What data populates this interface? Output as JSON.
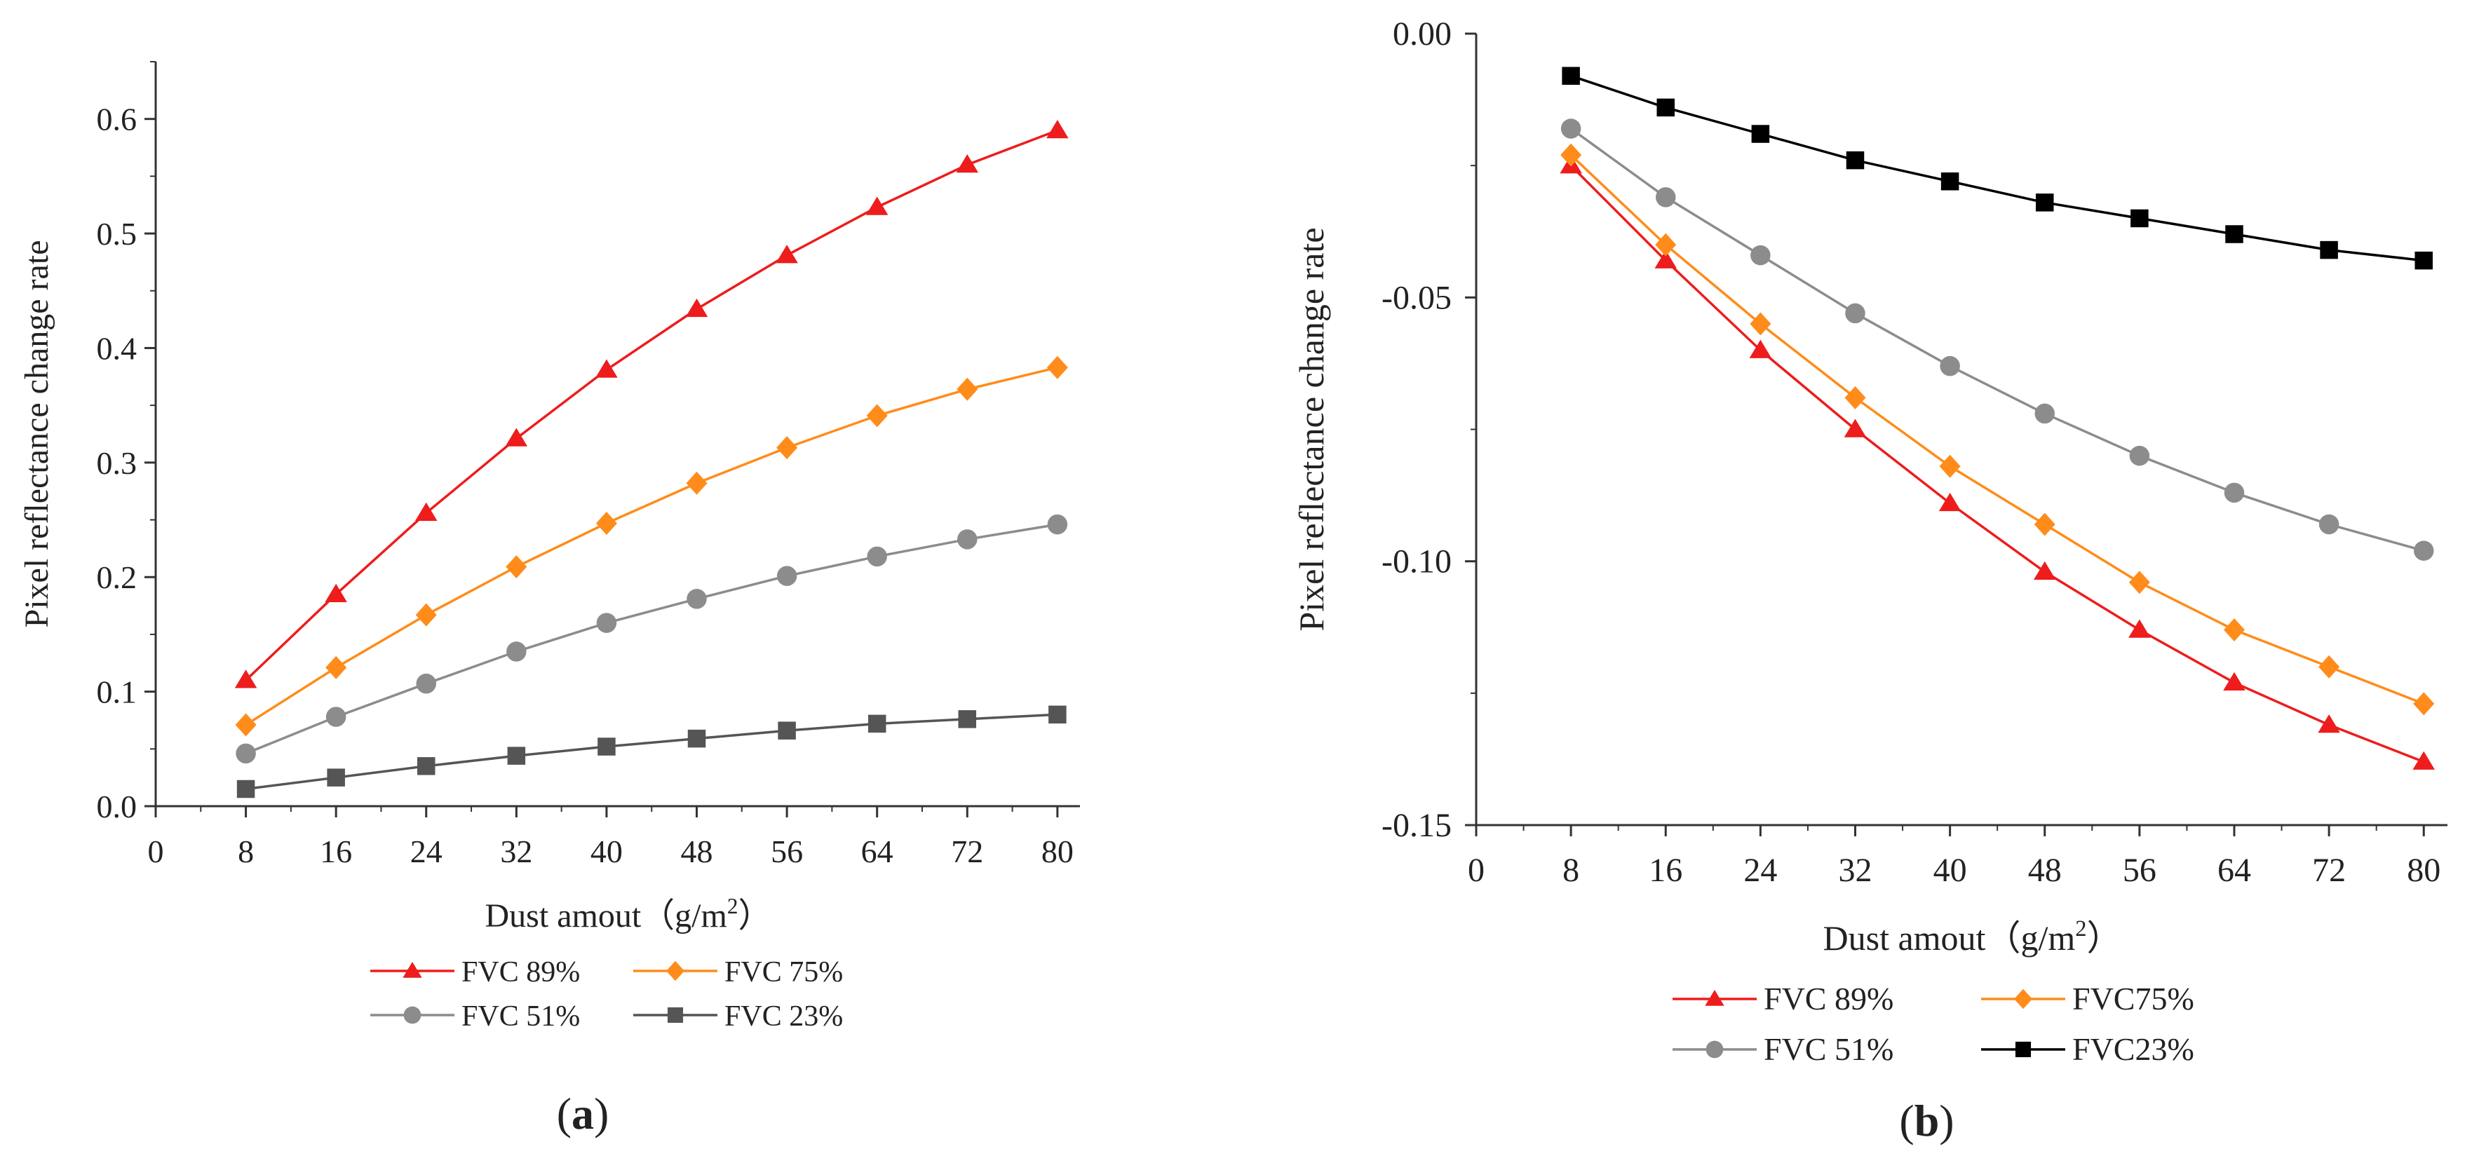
{
  "chart_data": [
    {
      "type": "line",
      "panel_label": "(a)",
      "title": "",
      "xlabel": "Dust amout",
      "xlabel_unit": "（g/m²）",
      "ylabel": "Pixel reflectance change rate",
      "xlim": [
        0,
        82
      ],
      "ylim": [
        0,
        0.65
      ],
      "x_ticks": [
        0,
        8,
        16,
        24,
        32,
        40,
        48,
        56,
        64,
        72,
        80
      ],
      "y_ticks": [
        0.0,
        0.1,
        0.2,
        0.3,
        0.4,
        0.5,
        0.6
      ],
      "y_tick_labels": [
        "0.0",
        "0.1",
        "0.2",
        "0.3",
        "0.4",
        "0.5",
        "0.6"
      ],
      "x": [
        8,
        16,
        24,
        32,
        40,
        48,
        56,
        64,
        72,
        80
      ],
      "legend_layout": "two-column",
      "series": [
        {
          "name": "FVC 89%",
          "color": "#ee1c1c",
          "marker": "triangle",
          "values": [
            0.11,
            0.185,
            0.256,
            0.321,
            0.381,
            0.434,
            0.481,
            0.523,
            0.56,
            0.59
          ]
        },
        {
          "name": "FVC 75%",
          "color": "#ff8c1a",
          "marker": "diamond",
          "values": [
            0.071,
            0.121,
            0.167,
            0.209,
            0.247,
            0.282,
            0.313,
            0.341,
            0.364,
            0.383
          ]
        },
        {
          "name": "FVC 51%",
          "color": "#8c8c8c",
          "marker": "circle",
          "values": [
            0.046,
            0.078,
            0.107,
            0.135,
            0.16,
            0.181,
            0.201,
            0.218,
            0.233,
            0.246
          ]
        },
        {
          "name": "FVC 23%",
          "color": "#555555",
          "marker": "square",
          "values": [
            0.015,
            0.025,
            0.035,
            0.044,
            0.052,
            0.059,
            0.066,
            0.072,
            0.076,
            0.08
          ]
        }
      ]
    },
    {
      "type": "line",
      "panel_label": "(b)",
      "title": "",
      "xlabel": "Dust amout",
      "xlabel_unit": "（g/m²）",
      "ylabel": "Pixel reflectance change rate",
      "xlim": [
        0,
        82
      ],
      "ylim": [
        -0.15,
        0.0
      ],
      "x_ticks": [
        0,
        8,
        16,
        24,
        32,
        40,
        48,
        56,
        64,
        72,
        80
      ],
      "y_ticks": [
        0.0,
        -0.05,
        -0.1,
        -0.15
      ],
      "y_tick_labels": [
        "0.00",
        "-0.05",
        "-0.10",
        "-0.15"
      ],
      "x": [
        8,
        16,
        24,
        32,
        40,
        48,
        56,
        64,
        72,
        80
      ],
      "legend_layout": "two-column",
      "series": [
        {
          "name": "FVC 89%",
          "color": "#ee1c1c",
          "marker": "triangle",
          "values": [
            -0.025,
            -0.043,
            -0.06,
            -0.075,
            -0.089,
            -0.102,
            -0.113,
            -0.123,
            -0.131,
            -0.138
          ]
        },
        {
          "name": "FVC75%",
          "color": "#ff8c1a",
          "marker": "diamond",
          "values": [
            -0.023,
            -0.04,
            -0.055,
            -0.069,
            -0.082,
            -0.093,
            -0.104,
            -0.113,
            -0.12,
            -0.127
          ]
        },
        {
          "name": "FVC 51%",
          "color": "#8c8c8c",
          "marker": "circle",
          "values": [
            -0.018,
            -0.031,
            -0.042,
            -0.053,
            -0.063,
            -0.072,
            -0.08,
            -0.087,
            -0.093,
            -0.098
          ]
        },
        {
          "name": "FVC23%",
          "color": "#000000",
          "marker": "square",
          "values": [
            -0.008,
            -0.014,
            -0.019,
            -0.024,
            -0.028,
            -0.032,
            -0.035,
            -0.038,
            -0.041,
            -0.043
          ]
        }
      ]
    }
  ]
}
